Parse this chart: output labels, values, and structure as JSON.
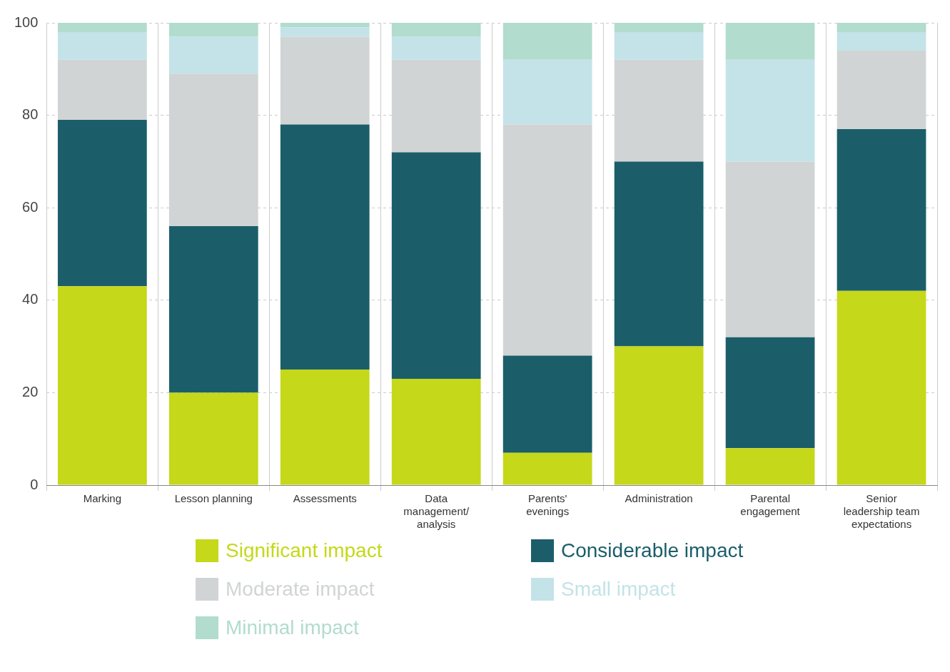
{
  "chart_data": {
    "type": "bar",
    "stacked": true,
    "categories": [
      "Marking",
      "Lesson planning",
      "Assessments",
      "Data management/analysis",
      "Parents' evenings",
      "Administration",
      "Parental engagement",
      "Senior leadership team expectations"
    ],
    "series": [
      {
        "name": "Significant impact",
        "color": "#c5d81a",
        "values": [
          43,
          20,
          25,
          23,
          7,
          30,
          8,
          42
        ]
      },
      {
        "name": "Considerable impact",
        "color": "#1b5e6a",
        "values": [
          36,
          36,
          53,
          49,
          21,
          40,
          24,
          35
        ]
      },
      {
        "name": "Moderate impact",
        "color": "#d1d4d5",
        "values": [
          13,
          33,
          19,
          20,
          50,
          22,
          38,
          17
        ]
      },
      {
        "name": "Small impact",
        "color": "#c3e3e8",
        "values": [
          6,
          8,
          2,
          5,
          14,
          6,
          22,
          4
        ]
      },
      {
        "name": "Minimal impact",
        "color": "#b2dccd",
        "values": [
          2,
          3,
          1,
          3,
          8,
          2,
          8,
          2
        ]
      }
    ],
    "ylim": [
      0,
      100
    ],
    "yticks": [
      0,
      20,
      40,
      60,
      80,
      100
    ],
    "grid": true,
    "legend": "bottom"
  }
}
